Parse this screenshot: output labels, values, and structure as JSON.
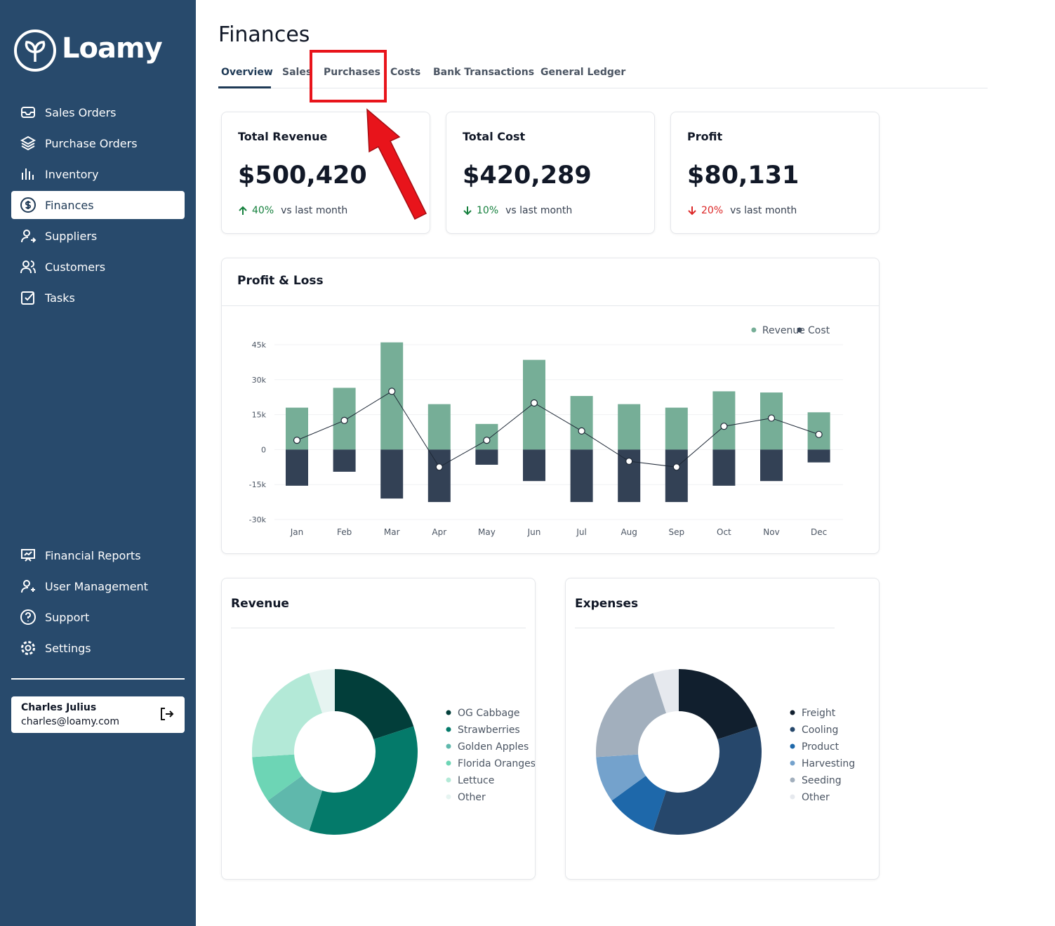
{
  "sidebar": {
    "brand": "Loamy",
    "nav": [
      "Sales Orders",
      "Purchase Orders",
      "Inventory",
      "Finances",
      "Suppliers",
      "Customers",
      "Tasks"
    ],
    "nav_bottom": [
      "Financial Reports",
      "User Management",
      "Support",
      "Settings"
    ],
    "user": {
      "name": "Charles Julius",
      "email": "charles@loamy.com"
    }
  },
  "header": {
    "title": "Finances",
    "tabs": [
      "Overview",
      "Sales",
      "Purchases",
      "Costs",
      "Bank Transactions",
      "General Ledger"
    ]
  },
  "kpis": [
    {
      "label": "Total Revenue",
      "value": "$500,420",
      "change": "40%",
      "note": "vs last month"
    },
    {
      "label": "Total Cost",
      "value": "$420,289",
      "change": "10%",
      "note": "vs last month"
    },
    {
      "label": "Profit",
      "value": "$80,131",
      "change": "20%",
      "note": "vs last month"
    }
  ],
  "chart_data": [
    {
      "type": "bar",
      "title": "Profit & Loss",
      "categories": [
        "Jan",
        "Feb",
        "Mar",
        "Apr",
        "May",
        "Jun",
        "Jul",
        "Aug",
        "Sep",
        "Oct",
        "Nov",
        "Dec"
      ],
      "series": [
        {
          "name": "Revenue",
          "color": "#76ae97",
          "values": [
            18000,
            26500,
            46000,
            19500,
            11000,
            38500,
            23000,
            19500,
            18000,
            25000,
            24500,
            16000
          ]
        },
        {
          "name": "Cost",
          "color": "#334155",
          "values": [
            -15500,
            -9500,
            -21000,
            -22500,
            -6500,
            -13500,
            -22500,
            -22500,
            -22500,
            -15500,
            -13500,
            -5500
          ]
        },
        {
          "type": "line",
          "color": "#1f2937",
          "values": [
            4000,
            12500,
            25000,
            -7500,
            4000,
            20000,
            8000,
            -5000,
            -7500,
            10000,
            13500,
            6500
          ]
        }
      ],
      "ylim": [
        -30000,
        45000
      ],
      "yticks": [
        {
          "value": 45000,
          "label": "45k"
        },
        {
          "value": 30000,
          "label": "30k"
        },
        {
          "value": 15000,
          "label": "15k"
        },
        0,
        {
          "value": -15000,
          "label": "-15k"
        },
        {
          "value": -30000,
          "label": "-30k"
        }
      ],
      "grid": true,
      "legend": "top-right"
    },
    {
      "type": "donut",
      "title": "Revenue",
      "categories": [
        "OG Cabbage",
        "Strawberries",
        "Golden Apples",
        "Florida Oranges",
        "Lettuce",
        "Other"
      ],
      "values": [
        20,
        35,
        10,
        9,
        21,
        5
      ],
      "colors": [
        "#023e3a",
        "#047a6a",
        "#5fb8ac",
        "#6dd5b5",
        "#b3e9d7",
        "#e6f4f1"
      ]
    },
    {
      "type": "donut",
      "title": "Expenses",
      "categories": [
        "Freight",
        "Cooling",
        "Product",
        "Harvesting",
        "Seeding",
        "Other"
      ],
      "values": [
        20,
        35,
        10,
        9,
        21,
        5
      ],
      "colors": [
        "#111f2e",
        "#26476b",
        "#1e68aa",
        "#74a2cc",
        "#a2afbd",
        "#e6e9ee"
      ]
    }
  ]
}
